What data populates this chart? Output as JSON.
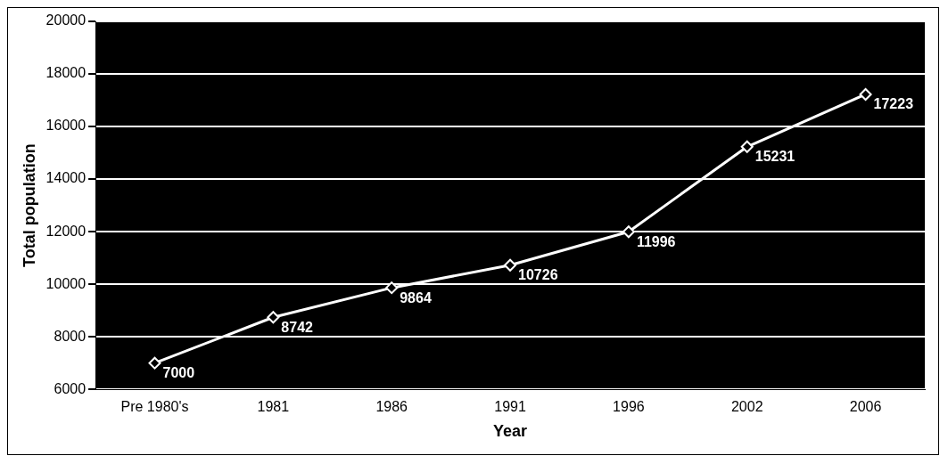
{
  "chart_data": {
    "type": "line",
    "xlabel": "Year",
    "ylabel": "Total population",
    "categories": [
      "Pre 1980's",
      "1981",
      "1986",
      "1991",
      "1996",
      "2002",
      "2006"
    ],
    "series": [
      {
        "color": "#ffffff",
        "values": [
          7000,
          8742,
          9864,
          10726,
          11996,
          15231,
          17223
        ]
      }
    ],
    "ylim": [
      6000,
      20000
    ],
    "yticks": [
      6000,
      8000,
      10000,
      12000,
      14000,
      16000,
      18000,
      20000
    ],
    "grid": "y",
    "marker": "diamond",
    "data_labels": true,
    "legend": false
  }
}
